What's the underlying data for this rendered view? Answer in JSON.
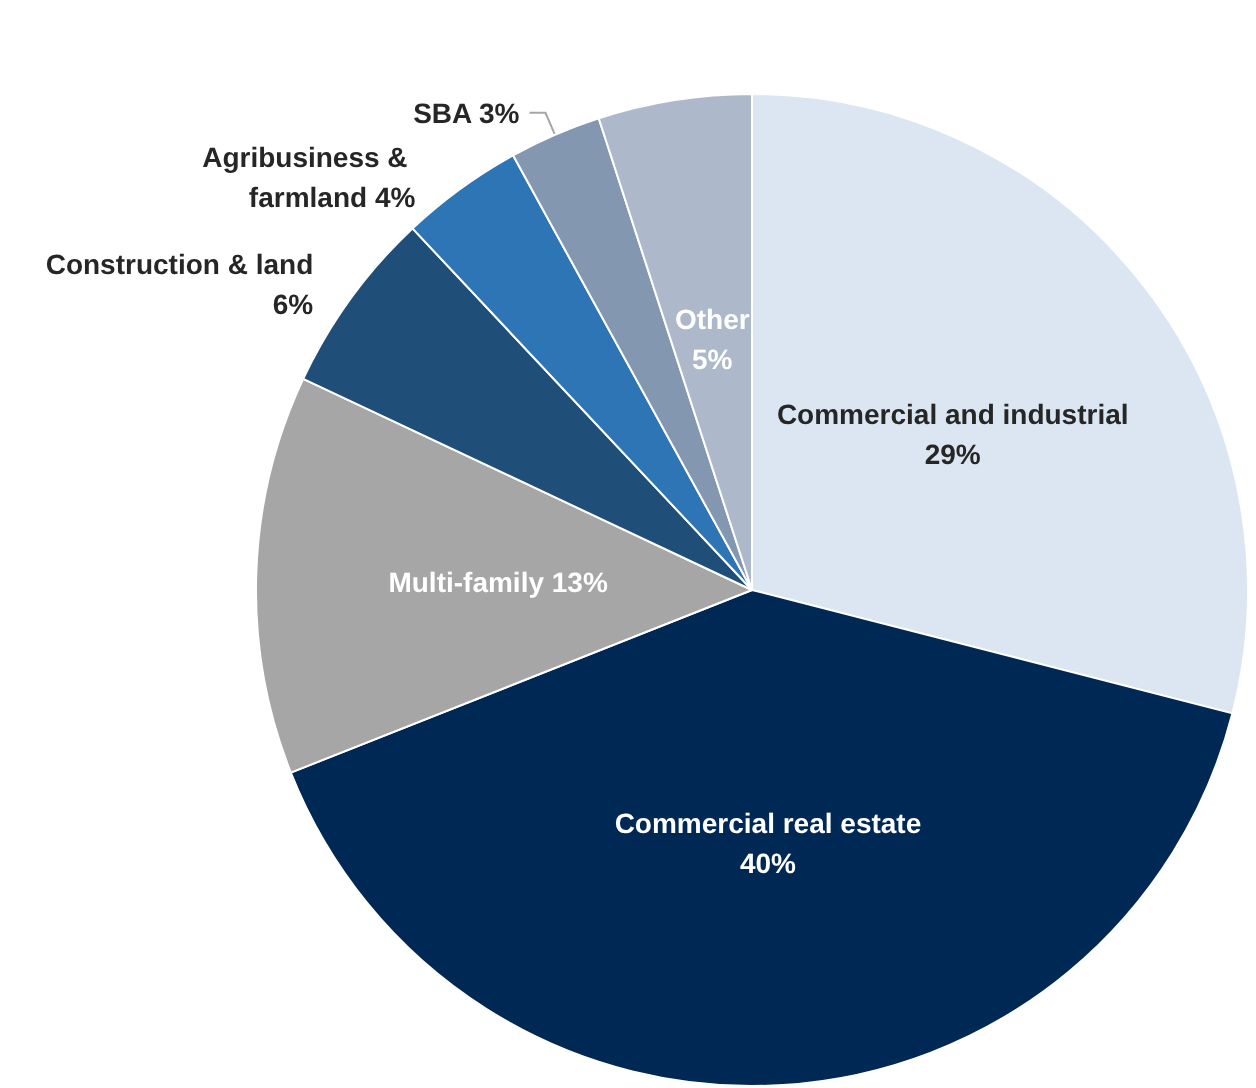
{
  "chart_data": {
    "type": "pie",
    "categories": [
      "Commercial and industrial",
      "Commercial real estate",
      "Multi-family",
      "Construction & land",
      "Agribusiness & farmland",
      "SBA",
      "Other"
    ],
    "values": [
      29,
      40,
      13,
      6,
      4,
      3,
      5
    ],
    "colors": [
      "#dce6f2",
      "#002855",
      "#a6a6a6",
      "#1f4e79",
      "#2e75b6",
      "#8497b0",
      "#adb9ca"
    ],
    "value_labels": [
      "29%",
      "40%",
      "13%",
      "6%",
      "4%",
      "3%",
      "5%"
    ],
    "legend": false
  }
}
